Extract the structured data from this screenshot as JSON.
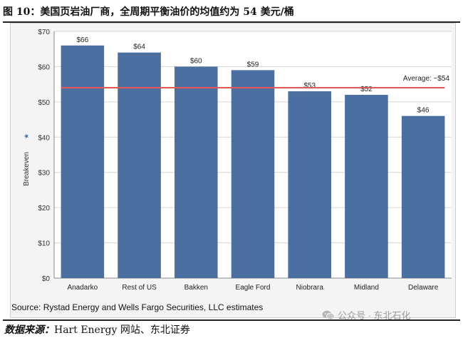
{
  "figure_title": "图 10：美国页岩油厂商，全周期平衡油价的均值约为 54 美元/桶",
  "chart_source_note": "Source: Rystad Energy and Wells Fargo Securities, LLC estimates",
  "footer": {
    "source_label": "数据来源：",
    "source_text": "Hart Energy 网站、东北证券"
  },
  "watermark": "公众号 · 东北石化",
  "colors": {
    "bar": "#4a6fa0",
    "average_line": "#e05a5a",
    "grid": "#d6d6d6",
    "background": "#f4f4f4"
  },
  "chart_data": {
    "type": "bar",
    "categories": [
      "Anadarko",
      "Rest of US",
      "Bakken",
      "Eagle Ford",
      "Niobrara",
      "Midland",
      "Delaware"
    ],
    "values": [
      66,
      64,
      60,
      59,
      53,
      52,
      46
    ],
    "value_labels": [
      "$66",
      "$64",
      "$60",
      "$59",
      "$53",
      "$52",
      "$46"
    ],
    "ylabel": "Breakeven",
    "ylim": [
      0,
      70
    ],
    "yticks": [
      0,
      10,
      20,
      30,
      40,
      50,
      60,
      70
    ],
    "ytick_labels": [
      "$0",
      "$10",
      "$20",
      "$30",
      "$40",
      "$50",
      "$60",
      "$70"
    ],
    "average": {
      "value": 54,
      "label": "Average: ~$54"
    },
    "grid": true
  }
}
